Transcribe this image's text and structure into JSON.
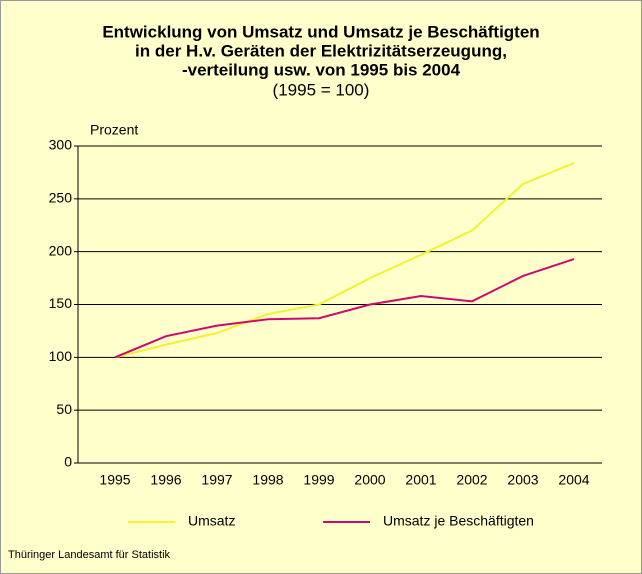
{
  "chart_data": {
    "type": "line",
    "title": [
      "Entwicklung von Umsatz und Umsatz je Beschäftigten",
      "in der H.v. Geräten der Elektrizitätserzeugung,",
      "-verteilung usw. von 1995 bis 2004"
    ],
    "subtitle": "(1995 = 100)",
    "y_label": "Prozent",
    "categories": [
      "1995",
      "1996",
      "1997",
      "1998",
      "1999",
      "2000",
      "2001",
      "2002",
      "2003",
      "2004"
    ],
    "series": [
      {
        "name": "Umsatz",
        "color": "#f2f22e",
        "values": [
          100,
          112,
          123,
          141,
          150,
          175,
          197,
          220,
          264,
          284
        ]
      },
      {
        "name": "Umsatz je Beschäftigten",
        "color": "#cc0a6e",
        "values": [
          100,
          120,
          130,
          136,
          137,
          150,
          158,
          153,
          177,
          193
        ]
      }
    ],
    "ylim": [
      0,
      300
    ],
    "yticks": [
      0,
      50,
      100,
      150,
      200,
      250,
      300
    ],
    "grid": true,
    "source": "Thüringer Landesamt für Statistik"
  }
}
